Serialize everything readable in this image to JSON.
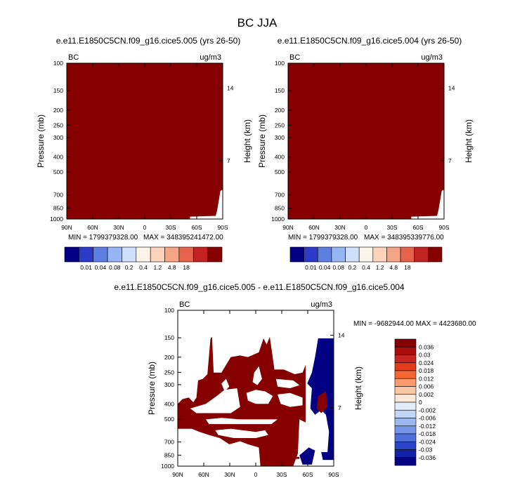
{
  "title": "BC JJA",
  "colors": {
    "fill_red": "#870000",
    "fill_blue": "#020083",
    "axis": "#000000",
    "background": "#ffffff"
  },
  "chart_data": [
    {
      "id": "panel-1",
      "type": "heatmap",
      "title": "e.e11.E1850C5CN.f09_g16.cice5.005 (yrs 26-50)",
      "left_label": "BC",
      "units": "ug/m3",
      "ylabel": "Pressure (mb)",
      "ylabel_right": "Height (km)",
      "x_ticks": [
        "90N",
        "60N",
        "30N",
        "0",
        "30S",
        "60S",
        "90S"
      ],
      "y_ticks": [
        "100",
        "150",
        "200",
        "250",
        "300",
        "400",
        "500",
        "700",
        "850",
        "1000"
      ],
      "right_ticks": [
        "14",
        "7"
      ],
      "ylim": [
        1000,
        100
      ],
      "min_text": "MIN = 1799379328.00",
      "max_text": "MAX = 348395241472.00",
      "colorbar": {
        "levels": [
          "0.01",
          "0.04",
          "0.08",
          "0.2",
          "0.4",
          "1.2",
          "4.8",
          "18"
        ],
        "colors": [
          "#020083",
          "#2b3ac7",
          "#5d7fe0",
          "#98b5f3",
          "#cddffb",
          "#fdf3e9",
          "#fcd2ba",
          "#f5a486",
          "#e6624b",
          "#c32222",
          "#870000"
        ]
      }
    },
    {
      "id": "panel-2",
      "type": "heatmap",
      "title": "e.e11.E1850C5CN.f09_g16.cice5.004 (yrs 26-50)",
      "left_label": "BC",
      "units": "ug/m3",
      "ylabel": "Pressure (mb)",
      "ylabel_right": "Height (km)",
      "x_ticks": [
        "90N",
        "60N",
        "30N",
        "0",
        "30S",
        "60S",
        "90S"
      ],
      "y_ticks": [
        "100",
        "150",
        "200",
        "250",
        "300",
        "400",
        "500",
        "700",
        "850",
        "1000"
      ],
      "right_ticks": [
        "14",
        "7"
      ],
      "ylim": [
        1000,
        100
      ],
      "min_text": "MIN = 1799379328.00",
      "max_text": "MAX = 348395339776.00",
      "colorbar": {
        "levels": [
          "0.01",
          "0.04",
          "0.08",
          "0.2",
          "0.4",
          "1.2",
          "4.8",
          "18"
        ],
        "colors": [
          "#020083",
          "#2b3ac7",
          "#5d7fe0",
          "#98b5f3",
          "#cddffb",
          "#fdf3e9",
          "#fcd2ba",
          "#f5a486",
          "#e6624b",
          "#c32222",
          "#870000"
        ]
      }
    },
    {
      "id": "panel-diff",
      "type": "heatmap",
      "title": "e.e11.E1850C5CN.f09_g16.cice5.005 - e.e11.E1850C5CN.f09_g16.cice5.004",
      "left_label": "BC",
      "units": "ug/m3",
      "ylabel": "Pressure (mb)",
      "ylabel_right": "Height (km)",
      "x_ticks": [
        "90N",
        "60N",
        "30N",
        "0",
        "30S",
        "60S",
        "90S"
      ],
      "y_ticks": [
        "100",
        "150",
        "200",
        "250",
        "300",
        "400",
        "500",
        "700",
        "850",
        "1000"
      ],
      "right_ticks": [
        "14",
        "7"
      ],
      "ylim": [
        1000,
        100
      ],
      "min_max_text": "MIN = -9682944.00  MAX = 4423680.00",
      "colorbar": {
        "levels": [
          "0.036",
          "0.03",
          "0.024",
          "0.018",
          "0.012",
          "0.006",
          "0.002",
          "0",
          "-0.002",
          "-0.006",
          "-0.012",
          "-0.018",
          "-0.024",
          "-0.03",
          "-0.036"
        ],
        "colors": [
          "#870000",
          "#a80c0c",
          "#c82424",
          "#e23d18",
          "#f36634",
          "#f89a6d",
          "#fbc7a5",
          "#fde8d8",
          "#e3ecfa",
          "#c2d7f6",
          "#9cb8ef",
          "#7695e6",
          "#4f6fdb",
          "#2b45c8",
          "#1221a6",
          "#020083"
        ]
      }
    }
  ]
}
